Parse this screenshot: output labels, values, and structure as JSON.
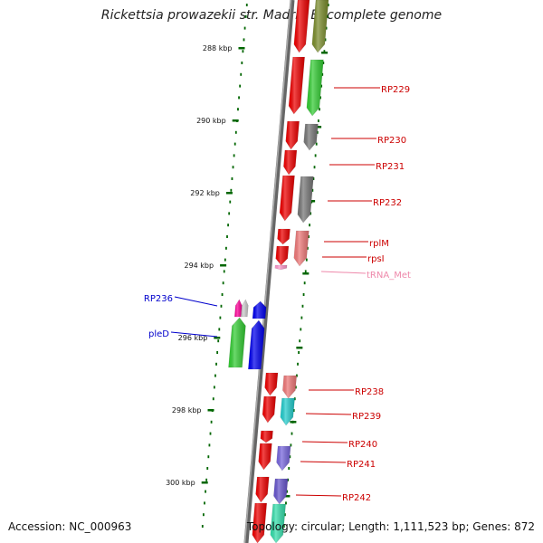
{
  "title": "Rickettsia prowazekii str. Madrid E, complete genome",
  "footer": {
    "accession": "Accession: NC_000963",
    "summary": "Topology: circular; Length: 1,111,523 bp; Genes: 872"
  },
  "colors": {
    "plus_strand_label": "#cc0000",
    "minus_strand_label": "#0000cc",
    "trna_label": "#ee88aa",
    "backbone": "#888888",
    "tick": "#006600"
  },
  "ticks": [
    "288 kbp",
    "290 kbp",
    "292 kbp",
    "294 kbp",
    "296 kbp",
    "298 kbp",
    "300 kbp"
  ],
  "gene_labels": [
    {
      "name": "RP229",
      "strand": "plus"
    },
    {
      "name": "RP230",
      "strand": "plus"
    },
    {
      "name": "RP231",
      "strand": "plus"
    },
    {
      "name": "RP232",
      "strand": "plus"
    },
    {
      "name": "rplM",
      "strand": "plus"
    },
    {
      "name": "rpsI",
      "strand": "plus"
    },
    {
      "name": "tRNA_Met",
      "strand": "trna"
    },
    {
      "name": "RP236",
      "strand": "minus"
    },
    {
      "name": "pleD",
      "strand": "minus"
    },
    {
      "name": "RP238",
      "strand": "plus"
    },
    {
      "name": "RP239",
      "strand": "plus"
    },
    {
      "name": "RP240",
      "strand": "plus"
    },
    {
      "name": "RP241",
      "strand": "plus"
    },
    {
      "name": "RP242",
      "strand": "plus"
    }
  ]
}
